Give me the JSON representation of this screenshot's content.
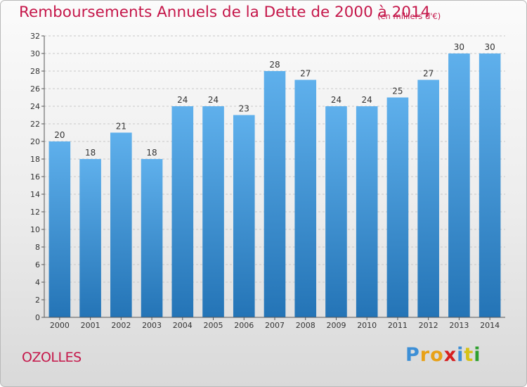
{
  "chart_data": {
    "type": "bar",
    "title": "Remboursements Annuels de la Dette de 2000 à 2014",
    "unit_note": "(en milliers d'€)",
    "categories": [
      "2000",
      "2001",
      "2002",
      "2003",
      "2004",
      "2005",
      "2006",
      "2007",
      "2008",
      "2009",
      "2010",
      "2011",
      "2012",
      "2013",
      "2014"
    ],
    "values": [
      20,
      18,
      21,
      18,
      24,
      24,
      23,
      28,
      27,
      24,
      24,
      25,
      27,
      30,
      30
    ],
    "ylim": [
      0,
      32
    ],
    "yticks": [
      0,
      2,
      4,
      6,
      8,
      10,
      12,
      14,
      16,
      18,
      20,
      22,
      24,
      26,
      28,
      30,
      32
    ],
    "grid": true,
    "bar_color": "#3d8fd6"
  },
  "footer": {
    "town": "OZOLLES",
    "logo_letters": [
      "P",
      "r",
      "o",
      "x",
      "i",
      "t",
      "i"
    ],
    "logo_colors": [
      "#3d8fd6",
      "#e8a117",
      "#e8a117",
      "#d62020",
      "#3d8fd6",
      "#d6c217",
      "#2ea02e"
    ]
  }
}
